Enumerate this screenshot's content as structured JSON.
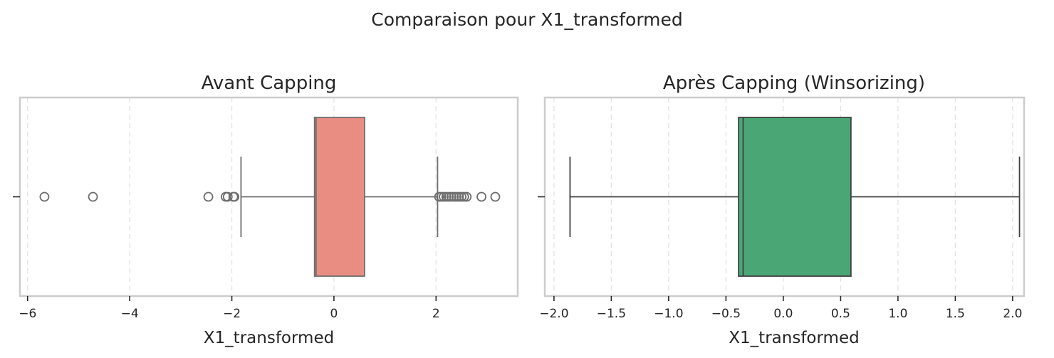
{
  "figure": {
    "suptitle": "Comparaison pour X1_transformed"
  },
  "chart_data": [
    {
      "type": "boxplot",
      "title": "Avant Capping",
      "xlabel": "X1_transformed",
      "ylabel": "",
      "orientation": "horizontal",
      "xlim": [
        -6.15,
        3.6
      ],
      "xticks": [
        -6,
        -4,
        -2,
        0,
        2
      ],
      "tick_labels": [
        "−6",
        "−4",
        "−2",
        "0",
        "2"
      ],
      "grid": true,
      "box_color": "#e98d82",
      "box": {
        "whisker_low": -1.82,
        "q1": -0.38,
        "median": -0.35,
        "q3": 0.6,
        "whisker_high": 2.03
      },
      "outliers": [
        -5.67,
        -4.72,
        -2.46,
        -2.12,
        -2.08,
        -1.97,
        -1.95,
        2.06,
        2.1,
        2.15,
        2.2,
        2.25,
        2.3,
        2.35,
        2.4,
        2.45,
        2.5,
        2.55,
        2.6,
        2.89,
        3.16
      ]
    },
    {
      "type": "boxplot",
      "title": "Après Capping (Winsorizing)",
      "xlabel": "X1_transformed",
      "ylabel": "",
      "orientation": "horizontal",
      "xlim": [
        -2.08,
        2.1
      ],
      "xticks": [
        -2.0,
        -1.5,
        -1.0,
        -0.5,
        0.0,
        0.5,
        1.0,
        1.5,
        2.0
      ],
      "tick_labels": [
        "−2.0",
        "−1.5",
        "−1.0",
        "−0.5",
        "0.0",
        "0.5",
        "1.0",
        "1.5",
        "2.0"
      ],
      "grid": true,
      "box_color": "#4ba675",
      "box": {
        "whisker_low": -1.86,
        "q1": -0.39,
        "median": -0.35,
        "q3": 0.59,
        "whisker_high": 2.06
      },
      "outliers": []
    }
  ]
}
